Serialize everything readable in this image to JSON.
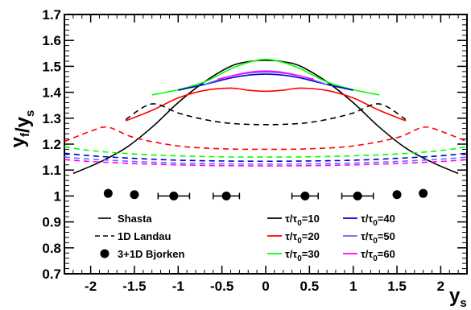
{
  "chart_data": {
    "type": "line",
    "title": "",
    "xlabel": "y_s",
    "ylabel": "y_f/y_s",
    "xlim": [
      -2.3,
      2.3
    ],
    "ylim": [
      0.7,
      1.7
    ],
    "x_ticks": [
      "-2",
      "-1.5",
      "-1",
      "-0.5",
      "0",
      "0.5",
      "1",
      "1.5",
      "2"
    ],
    "y_ticks": [
      "0.7",
      "0.8",
      "0.9",
      "1",
      "1.1",
      "1.2",
      "1.3",
      "1.4",
      "1.5",
      "1.6",
      "1.7"
    ],
    "grid": false,
    "legend": {
      "models": [
        {
          "label": "Shasta",
          "style": "solid"
        },
        {
          "label": "1D Landau",
          "style": "dashed"
        },
        {
          "label": "3+1D Bjorken",
          "style": "marker"
        }
      ],
      "taus": [
        {
          "label": "10",
          "color": "#000000"
        },
        {
          "label": "20",
          "color": "#ff0000"
        },
        {
          "label": "30",
          "color": "#00ff00"
        },
        {
          "label": "40",
          "color": "#0000cc"
        },
        {
          "label": "50",
          "color": "#6666ff"
        },
        {
          "label": "60",
          "color": "#ff00ff"
        }
      ]
    },
    "series": [
      {
        "model": "Shasta",
        "tau": "10",
        "color": "#000000",
        "style": "solid",
        "x": [
          -2.2,
          -1.9,
          -1.6,
          -1.3,
          -1.0,
          -0.7,
          -0.4,
          -0.2,
          0.0,
          0.2,
          0.4,
          0.7,
          1.0,
          1.3,
          1.6,
          1.9,
          2.2
        ],
        "y": [
          1.087,
          1.13,
          1.185,
          1.265,
          1.36,
          1.44,
          1.5,
          1.518,
          1.523,
          1.518,
          1.5,
          1.44,
          1.36,
          1.265,
          1.185,
          1.13,
          1.087
        ]
      },
      {
        "model": "Shasta",
        "tau": "20",
        "color": "#ff0000",
        "style": "solid",
        "x": [
          -1.6,
          -1.3,
          -1.0,
          -0.7,
          -0.4,
          -0.2,
          0.0,
          0.2,
          0.4,
          0.7,
          1.0,
          1.3,
          1.6
        ],
        "y": [
          1.29,
          1.33,
          1.378,
          1.407,
          1.416,
          1.408,
          1.404,
          1.408,
          1.416,
          1.407,
          1.378,
          1.33,
          1.29
        ]
      },
      {
        "model": "Shasta",
        "tau": "30",
        "color": "#00ff00",
        "style": "solid",
        "x": [
          -1.3,
          -1.0,
          -0.7,
          -0.4,
          -0.2,
          0.0,
          0.2,
          0.4,
          0.7,
          1.0,
          1.3
        ],
        "y": [
          1.39,
          1.41,
          1.44,
          1.49,
          1.515,
          1.527,
          1.515,
          1.49,
          1.44,
          1.41,
          1.39
        ]
      },
      {
        "model": "Shasta",
        "tau": "40",
        "color": "#0000cc",
        "style": "solid",
        "x": [
          -1.0,
          -0.7,
          -0.4,
          -0.2,
          0.0,
          0.2,
          0.4,
          0.7,
          1.0
        ],
        "y": [
          1.408,
          1.43,
          1.455,
          1.466,
          1.47,
          1.466,
          1.455,
          1.43,
          1.408
        ]
      },
      {
        "model": "Shasta",
        "tau": "50",
        "color": "#6666ff",
        "style": "solid",
        "x": [
          -0.7,
          -0.4,
          -0.2,
          0.0,
          0.2,
          0.4,
          0.7
        ],
        "y": [
          1.43,
          1.462,
          1.474,
          1.478,
          1.474,
          1.462,
          1.43
        ]
      },
      {
        "model": "Shasta",
        "tau": "60",
        "color": "#ff00ff",
        "style": "solid",
        "x": [
          -0.55,
          -0.3,
          -0.15,
          0.0,
          0.15,
          0.3,
          0.55
        ],
        "y": [
          1.45,
          1.47,
          1.479,
          1.482,
          1.479,
          1.47,
          1.45
        ]
      },
      {
        "model": "1D Landau",
        "tau": "10",
        "color": "#000000",
        "style": "dashed",
        "x": [
          -1.6,
          -1.3,
          -1.0,
          -0.7,
          -0.4,
          0.0,
          0.4,
          0.7,
          1.0,
          1.3,
          1.6
        ],
        "y": [
          1.295,
          1.355,
          1.32,
          1.295,
          1.28,
          1.275,
          1.28,
          1.295,
          1.32,
          1.355,
          1.295
        ]
      },
      {
        "model": "1D Landau",
        "tau": "20",
        "color": "#ff0000",
        "style": "dashed",
        "x": [
          -2.3,
          -2.0,
          -1.8,
          -1.5,
          -1.0,
          -0.5,
          0.0,
          0.5,
          1.0,
          1.5,
          1.8,
          2.0,
          2.3
        ],
        "y": [
          1.21,
          1.25,
          1.265,
          1.225,
          1.193,
          1.182,
          1.18,
          1.182,
          1.193,
          1.225,
          1.265,
          1.25,
          1.21
        ]
      },
      {
        "model": "1D Landau",
        "tau": "30",
        "color": "#00ff00",
        "style": "dashed",
        "x": [
          -2.3,
          -2.0,
          -1.5,
          -1.0,
          -0.5,
          0.0,
          0.5,
          1.0,
          1.5,
          2.0,
          2.3
        ],
        "y": [
          1.19,
          1.175,
          1.162,
          1.155,
          1.151,
          1.15,
          1.151,
          1.155,
          1.162,
          1.175,
          1.19
        ]
      },
      {
        "model": "1D Landau",
        "tau": "40",
        "color": "#0000cc",
        "style": "dashed",
        "x": [
          -2.3,
          -2.0,
          -1.5,
          -1.0,
          -0.5,
          0.0,
          0.5,
          1.0,
          1.5,
          2.0,
          2.3
        ],
        "y": [
          1.165,
          1.155,
          1.145,
          1.138,
          1.135,
          1.134,
          1.135,
          1.138,
          1.145,
          1.155,
          1.165
        ]
      },
      {
        "model": "1D Landau",
        "tau": "50",
        "color": "#6666ff",
        "style": "dashed",
        "x": [
          -2.3,
          -2.0,
          -1.5,
          -1.0,
          -0.5,
          0.0,
          0.5,
          1.0,
          1.5,
          2.0,
          2.3
        ],
        "y": [
          1.15,
          1.142,
          1.133,
          1.127,
          1.124,
          1.123,
          1.124,
          1.127,
          1.133,
          1.142,
          1.15
        ]
      },
      {
        "model": "1D Landau",
        "tau": "60",
        "color": "#ff00ff",
        "style": "dashed",
        "x": [
          -2.3,
          -2.0,
          -1.5,
          -1.0,
          -0.5,
          0.0,
          0.5,
          1.0,
          1.5,
          2.0,
          2.3
        ],
        "y": [
          1.14,
          1.133,
          1.125,
          1.12,
          1.117,
          1.116,
          1.117,
          1.12,
          1.125,
          1.133,
          1.14
        ]
      }
    ],
    "points": {
      "model": "3+1D Bjorken",
      "x": [
        -1.8,
        -1.5,
        -1.05,
        -0.45,
        0.45,
        1.05,
        1.5,
        1.8
      ],
      "y": [
        1.01,
        1.005,
        1.0,
        1.0,
        1.0,
        1.0,
        1.005,
        1.01
      ],
      "xerr": [
        0,
        0,
        0.18,
        0.15,
        0.15,
        0.18,
        0,
        0
      ]
    }
  }
}
